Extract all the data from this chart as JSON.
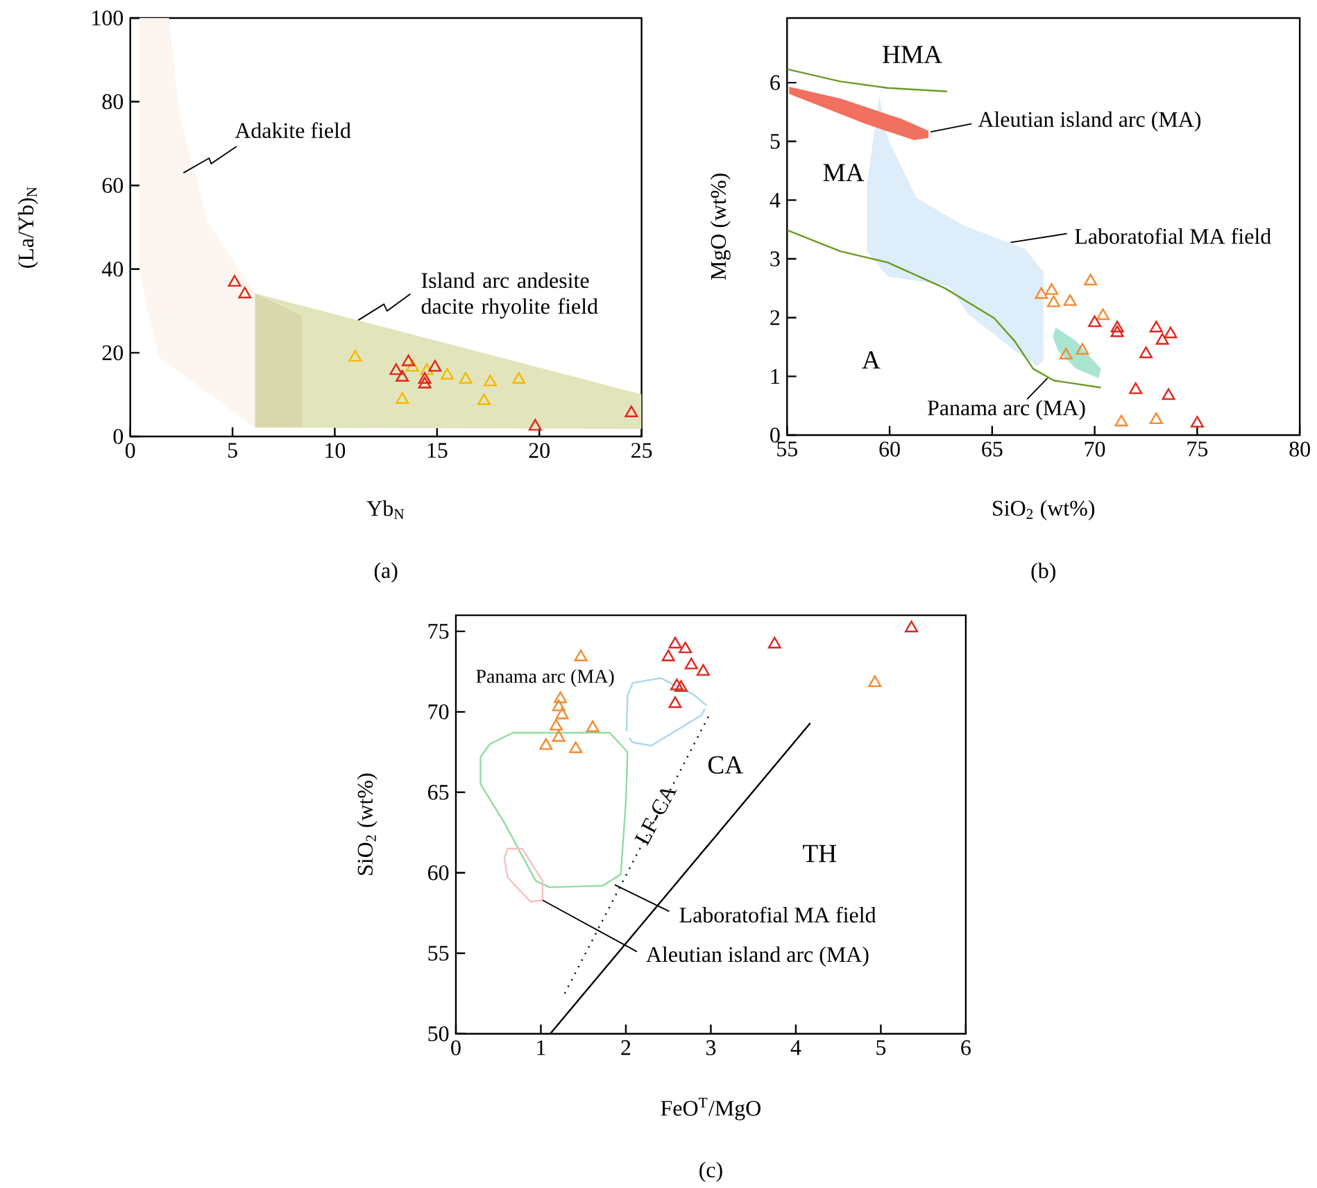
{
  "chart_data": [
    {
      "type": "scatter",
      "title": "(a)",
      "xlabel": "Yb$_{N}$",
      "ylabel": "(La/Yb)$_{N}$",
      "xlim": [
        0,
        25
      ],
      "ylim": [
        0,
        100
      ],
      "xticks": [
        0,
        5,
        10,
        15,
        20,
        25
      ],
      "yticks": [
        0,
        20,
        40,
        60,
        80,
        100
      ],
      "series": [
        {
          "type": "area",
          "color": "#e2e5bb",
          "x": [
            6.1,
            25,
            25,
            8.4,
            8.4
          ],
          "values": [
            34.2,
            10.1,
            1.8,
            2.1,
            29
          ]
        },
        {
          "type": "area",
          "color": "#fdf5ef",
          "x": [
            0.45,
            1.9,
            2.4,
            3.8,
            6.1,
            6.1,
            1.4,
            0.45
          ],
          "values": [
            100,
            100,
            77,
            51,
            34.2,
            2.1,
            19,
            39
          ]
        },
        {
          "type": "area",
          "color": "#d9d7ac",
          "x": [
            6.1,
            6.1,
            8.4,
            8.4
          ],
          "values": [
            2.1,
            34.2,
            29,
            2.1
          ]
        },
        {
          "marker": "triangle",
          "color": "#f5b800",
          "x": [
            11.0,
            13.3,
            13.8,
            14.5,
            15.5,
            16.4,
            17.6,
            17.3,
            19.0
          ],
          "values": [
            18.9,
            8.8,
            16.5,
            15.7,
            14.6,
            13.6,
            13.0,
            8.5,
            13.6
          ]
        },
        {
          "marker": "triangle",
          "color": "#e0261c",
          "x": [
            5.1,
            5.6,
            13.0,
            13.3,
            13.6,
            14.4,
            14.4,
            14.9,
            19.8,
            24.5
          ],
          "values": [
            36.8,
            34.0,
            15.7,
            14.1,
            17.8,
            13.6,
            12.5,
            16.5,
            2.4,
            5.6
          ]
        }
      ],
      "annotations": [
        "Adakite field",
        {
          "text": "Island arc andesite dacite rhyolite field",
          "x": 11.15,
          "y": 27.8
        }
      ]
    },
    {
      "type": "scatter",
      "title": "(b)",
      "xlabel": "SiO$_{2}$ (wt%)",
      "ylabel": "MgO (wt%)",
      "xlim": [
        55,
        80
      ],
      "ylim": [
        0,
        7.1
      ],
      "xticks": [
        55,
        60,
        65,
        70,
        75,
        80
      ],
      "yticks": [
        0,
        1,
        2,
        3,
        4,
        5,
        6
      ],
      "series": [
        {
          "type": "area",
          "color": "#ddedf9",
          "x": [
            59.5,
            59.9,
            61.3,
            63.6,
            66.6,
            67.5,
            67.5,
            67.2,
            66.1,
            63.8,
            62.9,
            59.9,
            58.9,
            58.9
          ],
          "values": [
            5.77,
            5.06,
            4.04,
            3.57,
            3.17,
            2.78,
            1.28,
            1.17,
            1.44,
            2.07,
            2.54,
            2.7,
            3.13,
            4.28
          ]
        },
        {
          "type": "area",
          "color": "#f2705f",
          "x": [
            55.1,
            57.6,
            60.6,
            61.9,
            61.9,
            61.2,
            58.8,
            55.1
          ],
          "values": [
            5.93,
            5.73,
            5.38,
            5.18,
            5.06,
            5.02,
            5.3,
            5.81
          ]
        },
        {
          "type": "area",
          "color": "#aae4d2",
          "x": [
            68.1,
            69.1,
            70.3,
            70.2,
            69.1,
            68.2,
            67.96
          ],
          "values": [
            1.83,
            1.6,
            1.13,
            0.97,
            1.13,
            1.44,
            1.68
          ]
        },
        {
          "type": "line",
          "color": "#6b9b22",
          "x": [
            55,
            57.6,
            59.9,
            62.8
          ],
          "values": [
            6.23,
            6.02,
            5.91,
            5.85
          ]
        },
        {
          "type": "line",
          "color": "#6b9b22",
          "x": [
            55,
            57.6,
            59.9,
            62.7,
            65.1,
            66.1,
            67.0,
            68.0,
            70.3
          ],
          "values": [
            3.49,
            3.13,
            2.94,
            2.5,
            1.99,
            1.6,
            1.13,
            0.93,
            0.81
          ]
        },
        {
          "marker": "triangle",
          "color": "#f7892f",
          "x": [
            67.4,
            67.9,
            68.0,
            68.8,
            69.8,
            70.4,
            68.6,
            69.4,
            71.3,
            73.0
          ],
          "values": [
            2.39,
            2.46,
            2.25,
            2.27,
            2.62,
            2.03,
            1.36,
            1.44,
            0.22,
            0.26
          ]
        },
        {
          "marker": "triangle",
          "color": "#e0261c",
          "x": [
            70.0,
            71.1,
            71.1,
            73.0,
            73.3,
            73.7,
            72.5,
            72.0,
            73.6,
            75.0
          ],
          "values": [
            1.91,
            1.82,
            1.74,
            1.82,
            1.61,
            1.72,
            1.38,
            0.77,
            0.67,
            0.2
          ]
        }
      ],
      "annotations": [
        "HMA",
        "MA",
        "A",
        {
          "text": "Aleutian island arc (MA)",
          "x": 62.0,
          "y": 5.16
        },
        {
          "text": "Laboratofial MA field",
          "x": 65.9,
          "y": 3.28
        },
        {
          "text": "Panama arc (MA)",
          "x": 67.7,
          "y": 0.97
        }
      ]
    },
    {
      "type": "scatter",
      "title": "(c)",
      "xlabel": "FeO$^{T}$/MgO",
      "ylabel": "SiO$_{2}$ (wt%)",
      "xlim": [
        0,
        6
      ],
      "ylim": [
        50,
        76
      ],
      "xticks": [
        0,
        1,
        2,
        3,
        4,
        5,
        6
      ],
      "yticks": [
        50,
        55,
        60,
        65,
        70,
        75
      ],
      "series": [
        {
          "type": "line",
          "color": "#a6d8f0",
          "x": [
            2.01,
            2.01,
            2.02,
            2.08,
            2.41,
            2.79,
            2.95
          ],
          "values": [
            68.8,
            69.3,
            71.0,
            71.8,
            72.1,
            71.1,
            70.4
          ]
        },
        {
          "type": "line",
          "color": "#a6d8f0",
          "x": [
            2.04,
            2.08,
            2.3,
            2.89,
            2.93
          ],
          "values": [
            68.4,
            68.1,
            67.9,
            69.8,
            70.2
          ]
        },
        {
          "type": "line",
          "color": "#8fdca0",
          "x": [
            0.29,
            0.29,
            0.4,
            0.67,
            1.81,
            2.02
          ],
          "values": [
            65.5,
            67.2,
            68.0,
            68.7,
            68.7,
            67.5
          ]
        },
        {
          "type": "line",
          "color": "#8fdca0",
          "x": [
            1.73,
            1.94,
            2.0,
            2.02
          ],
          "values": [
            59.2,
            59.9,
            64.4,
            67.5
          ]
        },
        {
          "type": "line",
          "color": "#8fdca0",
          "x": [
            0.29,
            0.56,
            0.94,
            1.1,
            1.73
          ],
          "values": [
            65.5,
            63.2,
            59.5,
            59.1,
            59.2
          ]
        },
        {
          "type": "line",
          "color": "#f5c0c0",
          "x": [
            0.57,
            0.61,
            0.78,
            1.02,
            1.02
          ],
          "values": [
            60.9,
            61.5,
            61.5,
            59.5,
            58.3
          ]
        },
        {
          "type": "line",
          "color": "#f5c0c0",
          "x": [
            0.57,
            0.61,
            0.88,
            1.02
          ],
          "values": [
            60.9,
            59.7,
            58.2,
            58.3
          ]
        },
        {
          "type": "line",
          "color": "#000000",
          "x": [
            1.11,
            4.17
          ],
          "values": [
            50,
            69.3
          ]
        },
        {
          "type": "line",
          "color": "#000000",
          "line_style": "dotted",
          "x": [
            1.28,
            2.99
          ],
          "values": [
            52.5,
            69.9
          ]
        },
        {
          "marker": "triangle",
          "color": "#f7892f",
          "x": [
            1.47,
            1.23,
            1.21,
            1.25,
            1.18,
            1.61,
            1.21,
            1.06,
            1.41,
            4.93
          ],
          "values": [
            73.4,
            70.8,
            70.3,
            69.8,
            69.1,
            69.0,
            68.4,
            67.9,
            67.7,
            71.8
          ]
        },
        {
          "marker": "triangle",
          "color": "#e0261c",
          "x": [
            2.58,
            2.5,
            2.7,
            2.77,
            2.91,
            2.6,
            2.65,
            2.58,
            3.75,
            5.36
          ],
          "values": [
            74.2,
            73.4,
            73.9,
            72.9,
            72.5,
            71.6,
            71.5,
            70.5,
            74.2,
            75.2
          ]
        }
      ],
      "annotations": [
        "Panama arc (MA)",
        "CA",
        "TH",
        "LF-CA",
        {
          "text": "Laboratofial MA field",
          "x": 1.87,
          "y": 59.25
        },
        {
          "text": "Aleutian island arc (MA)",
          "x": 1.02,
          "y": 58.3
        }
      ]
    }
  ]
}
